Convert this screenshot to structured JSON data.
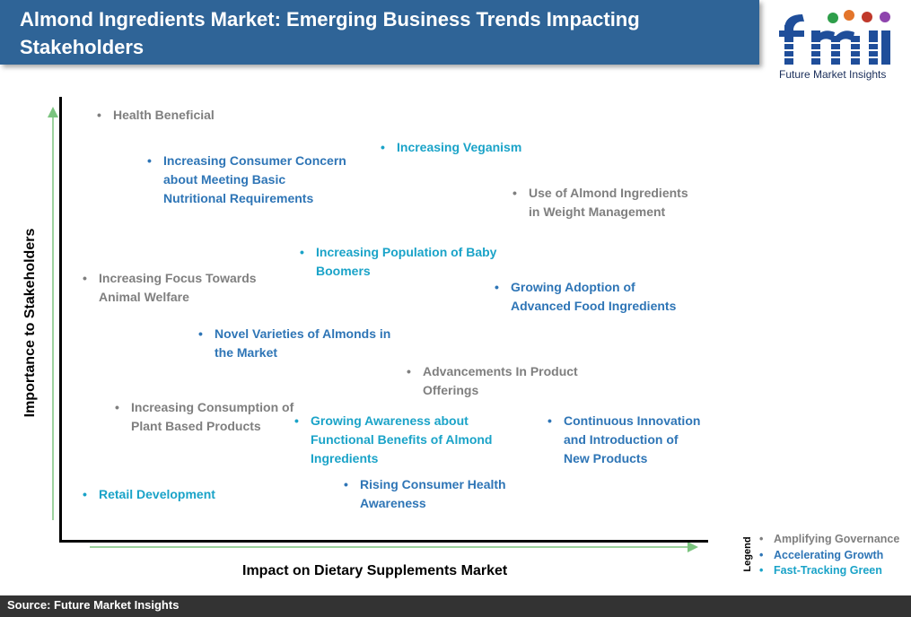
{
  "header": {
    "title": "Almond Ingredients Market: Emerging Business Trends Impacting Stakeholders"
  },
  "logo": {
    "text": "fmi",
    "tagline": "Future Market Insights"
  },
  "axes": {
    "y_label": "Importance to Stakeholders",
    "x_label": "Impact on Dietary Supplements Market"
  },
  "colors": {
    "governance": "#7f7f7f",
    "accelerating": "#2e75b6",
    "fast_tracking": "#1aa3c8",
    "header": "#2f6497"
  },
  "items": [
    {
      "lines": [
        "Health Beneficial"
      ],
      "category": "governance"
    },
    {
      "lines": [
        "Increasing Veganism"
      ],
      "category": "fast_tracking"
    },
    {
      "lines": [
        "Increasing Consumer Concern",
        "about Meeting Basic",
        "Nutritional Requirements"
      ],
      "category": "accelerating"
    },
    {
      "lines": [
        "Use of Almond Ingredients",
        "in Weight Management"
      ],
      "category": "governance"
    },
    {
      "lines": [
        "Increasing Population of Baby",
        "Boomers"
      ],
      "category": "fast_tracking"
    },
    {
      "lines": [
        "Increasing Focus Towards",
        "Animal Welfare"
      ],
      "category": "governance"
    },
    {
      "lines": [
        "Growing Adoption of",
        "Advanced Food Ingredients"
      ],
      "category": "accelerating"
    },
    {
      "lines": [
        "Novel Varieties of Almonds in",
        "the Market"
      ],
      "category": "accelerating"
    },
    {
      "lines": [
        "Advancements In Product",
        "Offerings"
      ],
      "category": "governance"
    },
    {
      "lines": [
        "Increasing Consumption of",
        "Plant Based Products"
      ],
      "category": "governance"
    },
    {
      "lines": [
        "Growing Awareness about",
        "Functional Benefits of Almond",
        "Ingredients"
      ],
      "category": "fast_tracking"
    },
    {
      "lines": [
        "Continuous Innovation",
        "and Introduction of",
        "New Products"
      ],
      "category": "accelerating"
    },
    {
      "lines": [
        "Retail Development"
      ],
      "category": "fast_tracking"
    },
    {
      "lines": [
        "Rising Consumer Health",
        "Awareness"
      ],
      "category": "accelerating"
    }
  ],
  "legend": {
    "title": "Legend",
    "entries": [
      {
        "label": "Amplifying Governance",
        "category": "governance"
      },
      {
        "label": "Accelerating Growth",
        "category": "accelerating"
      },
      {
        "label": "Fast-Tracking Green",
        "category": "fast_tracking"
      }
    ]
  },
  "source": "Source: Future Market Insights"
}
